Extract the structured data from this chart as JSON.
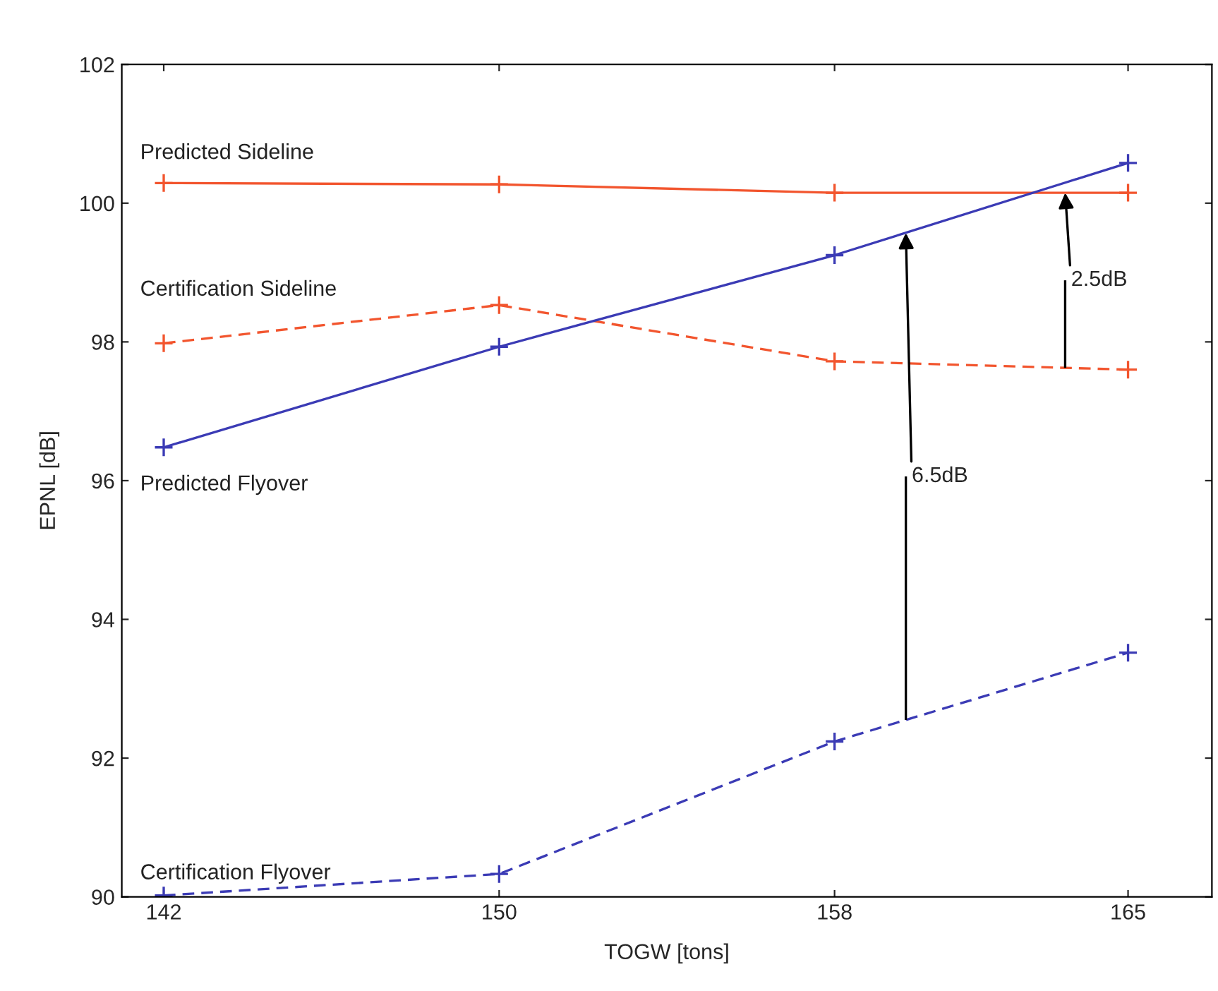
{
  "chart_data": {
    "type": "line",
    "xlabel": "TOGW [tons]",
    "ylabel": "EPNL [dB]",
    "x": [
      142,
      150,
      158,
      165
    ],
    "series": [
      {
        "name": "Predicted Sideline",
        "color": "#f2552e",
        "line_style": "solid",
        "values": [
          100.29,
          100.27,
          100.15,
          100.15
        ]
      },
      {
        "name": "Certification Sideline",
        "color": "#f2552e",
        "line_style": "dashed",
        "values": [
          97.98,
          98.53,
          97.72,
          97.6
        ]
      },
      {
        "name": "Predicted Flyover",
        "color": "#3b3bb5",
        "line_style": "solid",
        "values": [
          96.48,
          97.93,
          99.25,
          100.58
        ]
      },
      {
        "name": "Certification Flyover",
        "color": "#3b3bb5",
        "line_style": "dashed",
        "values": [
          90.02,
          90.33,
          92.24,
          93.52
        ]
      }
    ],
    "annotations": [
      {
        "text": "6.5dB",
        "x": 159.7,
        "y": 99.57
      },
      {
        "text": "2.5dB",
        "x": 163.5,
        "y": 100.15
      }
    ],
    "xlim": [
      141,
      167
    ],
    "xticks": [
      142,
      150,
      158,
      165
    ],
    "ylim": [
      90,
      102
    ],
    "yticks": [
      90,
      92,
      94,
      96,
      98,
      100,
      102
    ],
    "marker": "cross",
    "grid": false
  }
}
